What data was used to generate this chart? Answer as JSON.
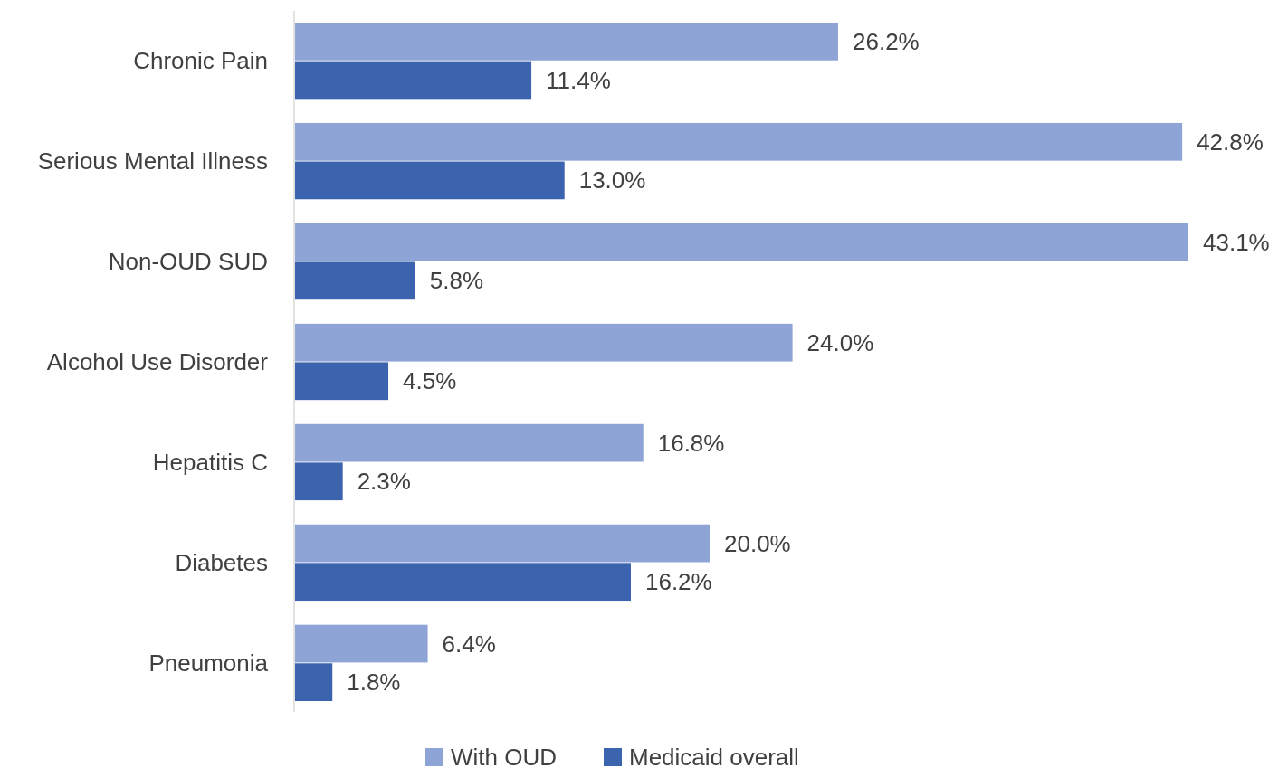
{
  "chart_data": {
    "type": "bar",
    "orientation": "horizontal",
    "categories": [
      "Chronic Pain",
      "Serious Mental Illness",
      "Non-OUD SUD",
      "Alcohol Use Disorder",
      "Hepatitis C",
      "Diabetes",
      "Pneumonia"
    ],
    "series": [
      {
        "name": "With OUD",
        "color": "#8fa4d6",
        "values": [
          26.2,
          42.8,
          43.1,
          24.0,
          16.8,
          20.0,
          6.4
        ],
        "value_labels": [
          "26.2%",
          "42.8%",
          "43.1%",
          "24.0%",
          "16.8%",
          "20.0%",
          "6.4%"
        ]
      },
      {
        "name": "Medicaid overall",
        "color": "#3c64ae",
        "values": [
          11.4,
          13.0,
          5.8,
          4.5,
          2.3,
          16.2,
          1.8
        ],
        "value_labels": [
          "11.4%",
          "13.0%",
          "5.8%",
          "4.5%",
          "2.3%",
          "16.2%",
          "1.8%"
        ]
      }
    ],
    "legend": "bottom",
    "grid": false
  }
}
